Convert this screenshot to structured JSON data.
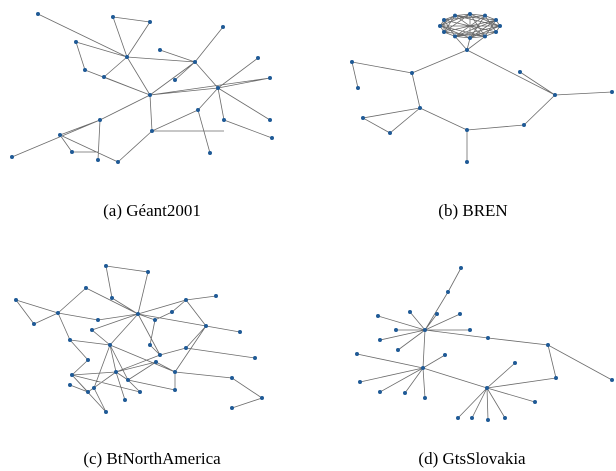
{
  "figures": [
    {
      "caption": "(a) Géant2001"
    },
    {
      "caption": "(b) BREN"
    },
    {
      "caption": "(c) BtNorthAmerica"
    },
    {
      "caption": "(d) GtsSlovakia"
    }
  ]
}
